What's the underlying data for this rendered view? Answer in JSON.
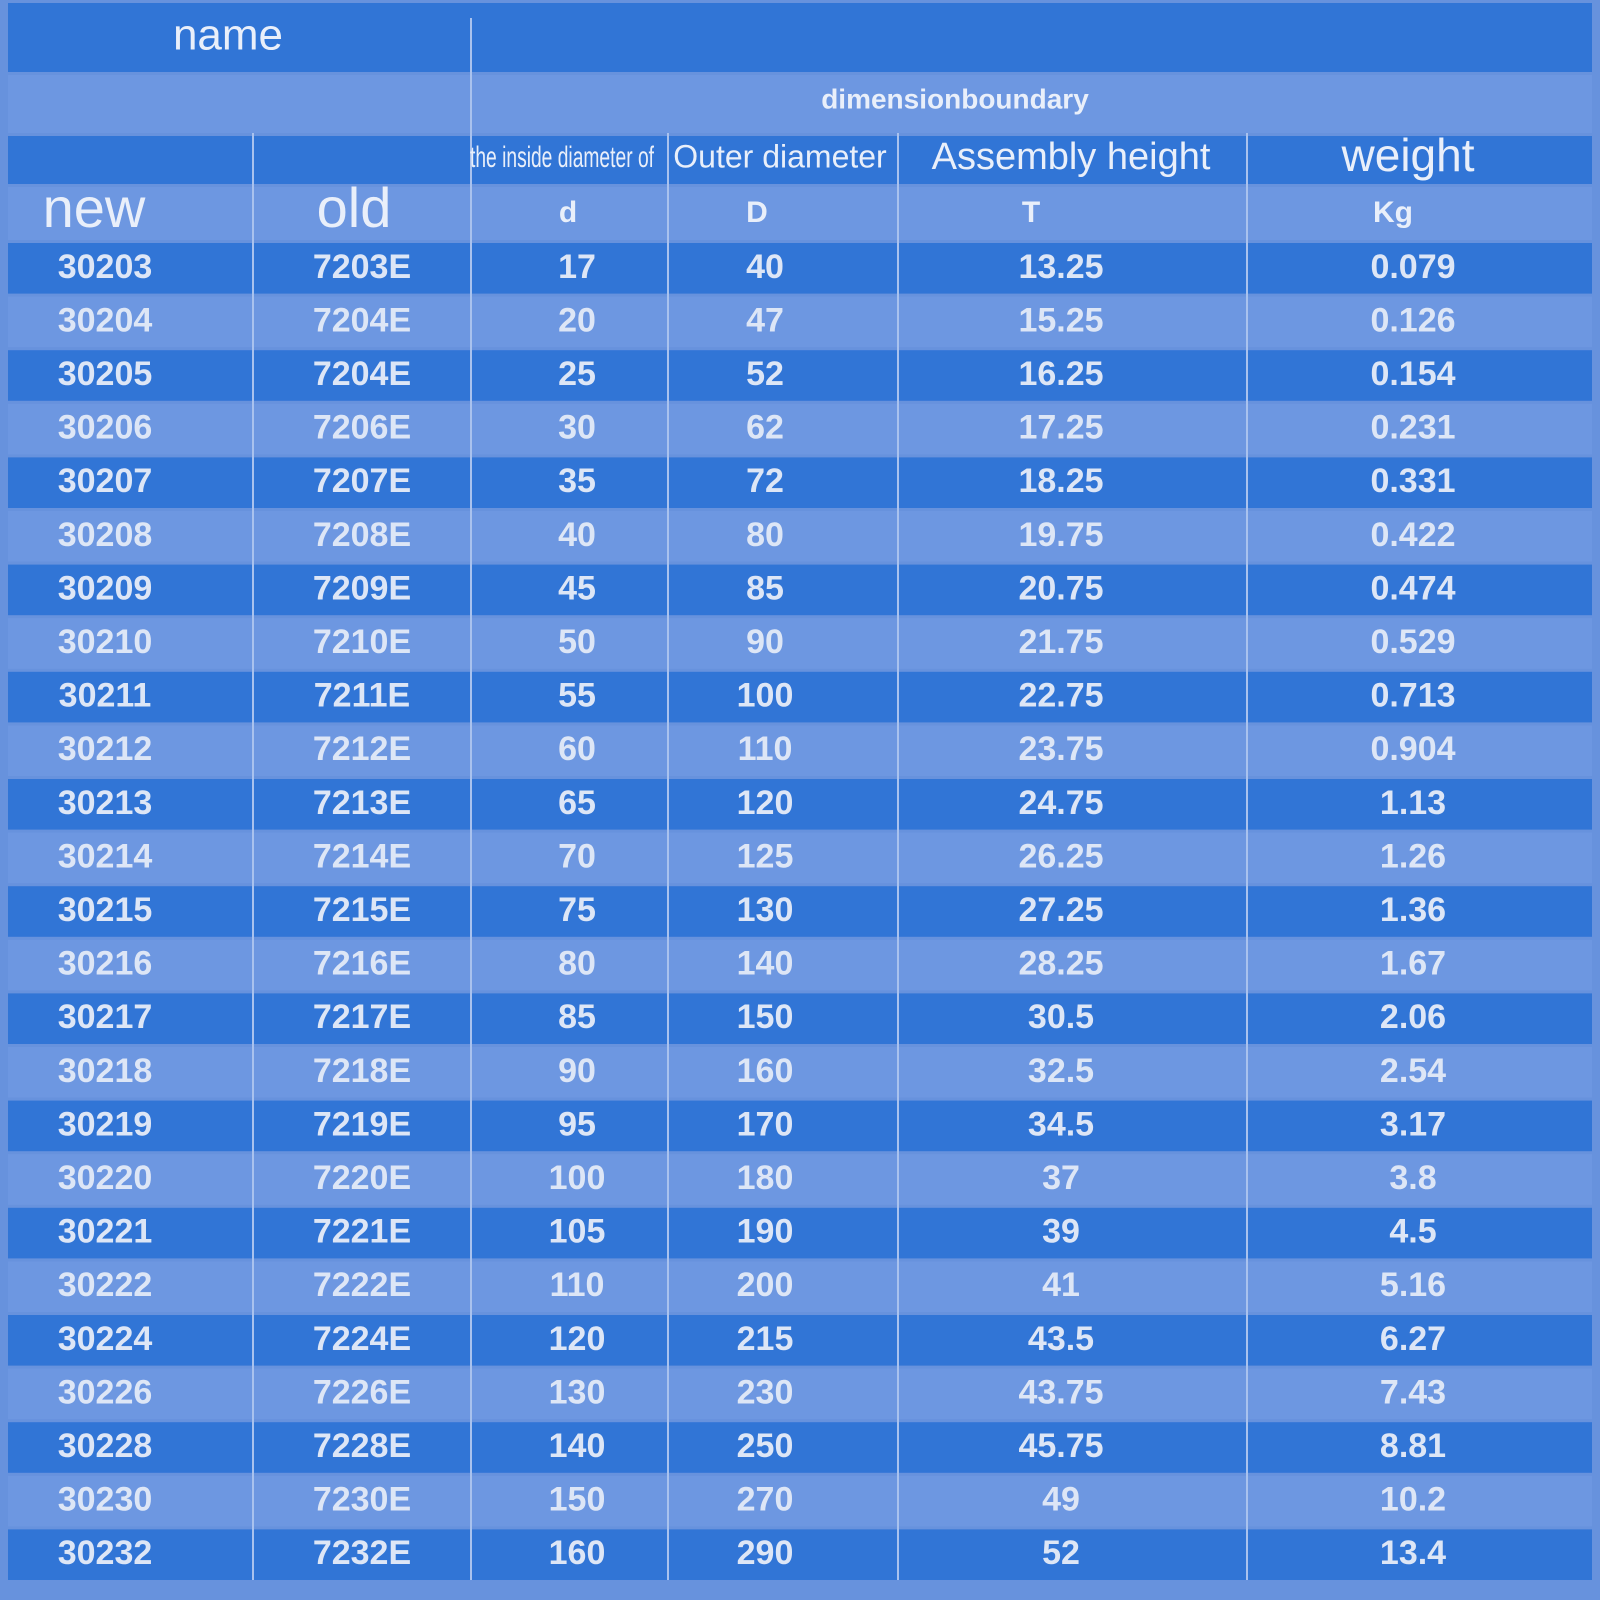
{
  "header": {
    "name": "name",
    "group": "dimensionboundary",
    "columns": [
      "the inside diameter of",
      "Outer diameter",
      "Assembly height",
      "weight"
    ],
    "subheaders": [
      "new",
      "old",
      "d",
      "D",
      "T",
      "Kg"
    ]
  },
  "table": {
    "rows": [
      [
        "30203",
        "7203E",
        "17",
        "40",
        "13.25",
        "0.079"
      ],
      [
        "30204",
        "7204E",
        "20",
        "47",
        "15.25",
        "0.126"
      ],
      [
        "30205",
        "7204E",
        "25",
        "52",
        "16.25",
        "0.154"
      ],
      [
        "30206",
        "7206E",
        "30",
        "62",
        "17.25",
        "0.231"
      ],
      [
        "30207",
        "7207E",
        "35",
        "72",
        "18.25",
        "0.331"
      ],
      [
        "30208",
        "7208E",
        "40",
        "80",
        "19.75",
        "0.422"
      ],
      [
        "30209",
        "7209E",
        "45",
        "85",
        "20.75",
        "0.474"
      ],
      [
        "30210",
        "7210E",
        "50",
        "90",
        "21.75",
        "0.529"
      ],
      [
        "30211",
        "7211E",
        "55",
        "100",
        "22.75",
        "0.713"
      ],
      [
        "30212",
        "7212E",
        "60",
        "110",
        "23.75",
        "0.904"
      ],
      [
        "30213",
        "7213E",
        "65",
        "120",
        "24.75",
        "1.13"
      ],
      [
        "30214",
        "7214E",
        "70",
        "125",
        "26.25",
        "1.26"
      ],
      [
        "30215",
        "7215E",
        "75",
        "130",
        "27.25",
        "1.36"
      ],
      [
        "30216",
        "7216E",
        "80",
        "140",
        "28.25",
        "1.67"
      ],
      [
        "30217",
        "7217E",
        "85",
        "150",
        "30.5",
        "2.06"
      ],
      [
        "30218",
        "7218E",
        "90",
        "160",
        "32.5",
        "2.54"
      ],
      [
        "30219",
        "7219E",
        "95",
        "170",
        "34.5",
        "3.17"
      ],
      [
        "30220",
        "7220E",
        "100",
        "180",
        "37",
        "3.8"
      ],
      [
        "30221",
        "7221E",
        "105",
        "190",
        "39",
        "4.5"
      ],
      [
        "30222",
        "7222E",
        "110",
        "200",
        "41",
        "5.16"
      ],
      [
        "30224",
        "7224E",
        "120",
        "215",
        "43.5",
        "6.27"
      ],
      [
        "30226",
        "7226E",
        "130",
        "230",
        "43.75",
        "7.43"
      ],
      [
        "30228",
        "7228E",
        "140",
        "250",
        "45.75",
        "8.81"
      ],
      [
        "30230",
        "7230E",
        "150",
        "270",
        "49",
        "10.2"
      ],
      [
        "30232",
        "7232E",
        "160",
        "290",
        "52",
        "13.4"
      ]
    ]
  }
}
